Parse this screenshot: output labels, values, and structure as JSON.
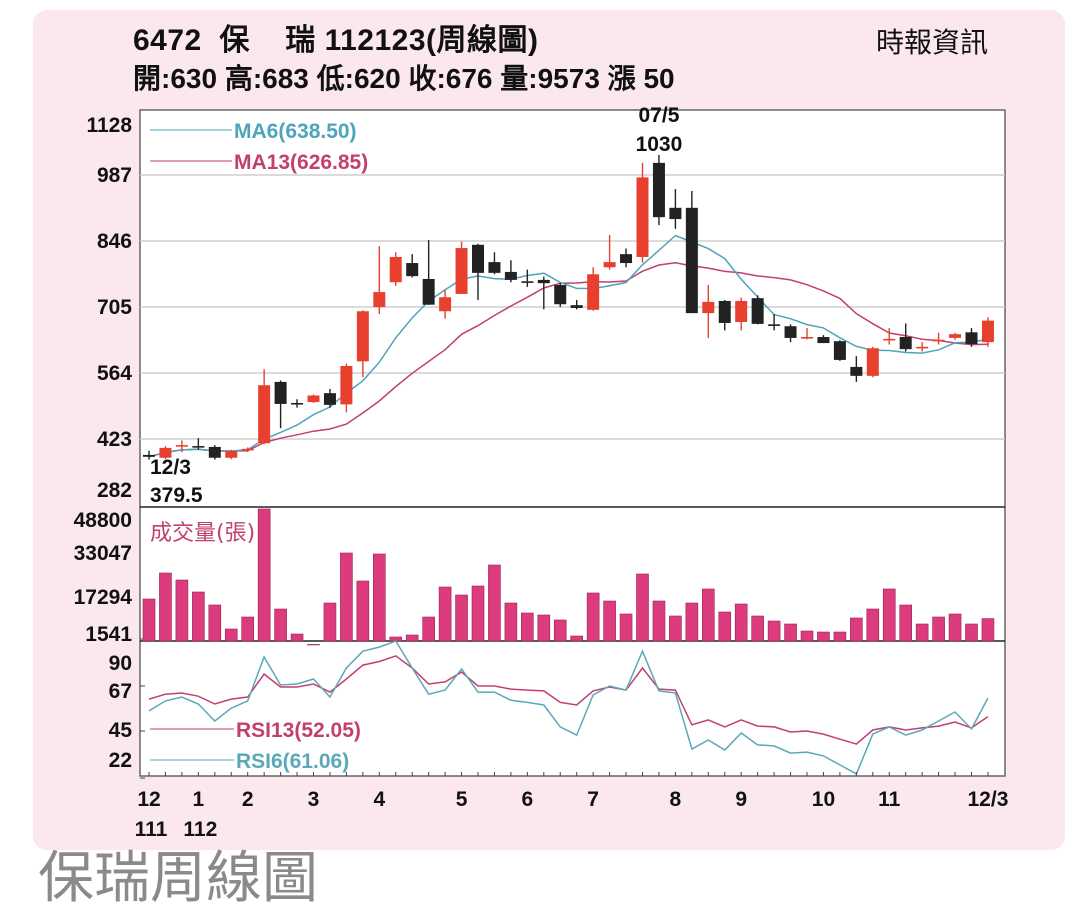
{
  "header": {
    "title": "6472  保    瑞 112123(周線圖)",
    "ohlc": "開:630 高:683 低:620 收:676 量:9573 漲 50",
    "source": "時報資訊"
  },
  "caption": "保瑞周線圖",
  "colors": {
    "up": "#e8402f",
    "down": "#222222",
    "ma6": "#4ea4ba",
    "ma13": "#c23f70",
    "volume": "#dc3c7e",
    "rsi13": "#c23f70",
    "rsi6": "#5aa8b8",
    "card": "#fbe8ef"
  },
  "chart_data": [
    {
      "type": "candlestick",
      "panel": "price",
      "y_ticks": [
        1128,
        987,
        846,
        705,
        564,
        423,
        282
      ],
      "ylim": [
        282,
        1128
      ],
      "grid": true,
      "legend": [
        {
          "name": "MA6(638.50)",
          "color": "#4ea4ba"
        },
        {
          "name": "MA13(626.85)",
          "color": "#c23f70"
        }
      ],
      "annotations": [
        {
          "week": 0,
          "date": "12/3",
          "value": "379.5"
        },
        {
          "week": 31,
          "date": "07/5",
          "value": "1030"
        }
      ],
      "x_ticks": [
        {
          "week": 0,
          "label": "12",
          "sub": "111"
        },
        {
          "week": 3,
          "label": "1",
          "sub": "112"
        },
        {
          "week": 6,
          "label": "2"
        },
        {
          "week": 10,
          "label": "3"
        },
        {
          "week": 14,
          "label": "4"
        },
        {
          "week": 19,
          "label": "5"
        },
        {
          "week": 23,
          "label": "6"
        },
        {
          "week": 27,
          "label": "7"
        },
        {
          "week": 32,
          "label": "8"
        },
        {
          "week": 36,
          "label": "9"
        },
        {
          "week": 41,
          "label": "10"
        },
        {
          "week": 45,
          "label": "11"
        },
        {
          "week": 51,
          "label": "12/3"
        }
      ],
      "ohlc": [
        [
          389,
          398,
          379,
          385
        ],
        [
          383,
          408,
          380,
          404
        ],
        [
          408,
          420,
          395,
          410
        ],
        [
          408,
          425,
          400,
          405
        ],
        [
          406,
          410,
          379,
          383
        ],
        [
          383,
          400,
          380,
          397
        ],
        [
          400,
          405,
          395,
          402
        ],
        [
          414,
          572,
          412,
          538
        ],
        [
          545,
          548,
          446,
          498
        ],
        [
          500,
          508,
          490,
          499
        ],
        [
          502,
          518,
          500,
          516
        ],
        [
          521,
          530,
          490,
          496
        ],
        [
          497,
          584,
          480,
          579
        ],
        [
          589,
          698,
          555,
          696
        ],
        [
          705,
          835,
          690,
          737
        ],
        [
          758,
          822,
          750,
          812
        ],
        [
          799,
          818,
          768,
          771
        ],
        [
          765,
          848,
          710,
          710
        ],
        [
          696,
          742,
          680,
          726
        ],
        [
          733,
          845,
          733,
          831
        ],
        [
          838,
          840,
          720,
          778
        ],
        [
          801,
          822,
          775,
          778
        ],
        [
          780,
          805,
          758,
          763
        ],
        [
          760,
          785,
          748,
          758
        ],
        [
          763,
          770,
          700,
          756
        ],
        [
          752,
          756,
          705,
          711
        ],
        [
          709,
          720,
          700,
          703
        ],
        [
          699,
          790,
          697,
          775
        ],
        [
          790,
          859,
          785,
          801
        ],
        [
          818,
          830,
          790,
          799
        ],
        [
          812,
          1013,
          800,
          982
        ],
        [
          1013,
          1030,
          880,
          897
        ],
        [
          917,
          957,
          872,
          893
        ],
        [
          917,
          953,
          692,
          692
        ],
        [
          692,
          752,
          639,
          716
        ],
        [
          718,
          720,
          655,
          671
        ],
        [
          673,
          725,
          655,
          718
        ],
        [
          724,
          730,
          668,
          669
        ],
        [
          668,
          690,
          655,
          667
        ],
        [
          664,
          668,
          630,
          639
        ],
        [
          641,
          660,
          636,
          641
        ],
        [
          641,
          645,
          628,
          628
        ],
        [
          632,
          634,
          590,
          592
        ],
        [
          577,
          600,
          545,
          558
        ],
        [
          558,
          620,
          555,
          617
        ],
        [
          637,
          660,
          625,
          637
        ],
        [
          641,
          670,
          610,
          615
        ],
        [
          620,
          630,
          610,
          620
        ],
        [
          635,
          650,
          625,
          635
        ],
        [
          639,
          650,
          635,
          647
        ],
        [
          651,
          660,
          620,
          626
        ],
        [
          630,
          683,
          620,
          676
        ]
      ]
    },
    {
      "type": "bar",
      "panel": "volume",
      "title": "成交量(張)",
      "y_ticks": [
        48800,
        33047,
        17294,
        1541
      ],
      "ylim": [
        1541,
        48800
      ],
      "values": [
        16577,
        25885,
        23380,
        19083,
        14429,
        5837,
        10133,
        48800,
        12997,
        4047,
        300,
        15145,
        33047,
        23021,
        32688,
        2973,
        3689,
        10133,
        20874,
        18009,
        21232,
        28749,
        15145,
        11565,
        10849,
        9059,
        3331,
        18725,
        15861,
        11207,
        25527,
        15861,
        10491,
        15145,
        20157,
        11923,
        14787,
        10491,
        8701,
        7627,
        5121,
        4763,
        4763,
        9775,
        12997,
        20157,
        14429,
        7627,
        10133,
        11207,
        7627,
        9573
      ]
    },
    {
      "type": "line",
      "panel": "rsi",
      "y_ticks": [
        90,
        67,
        45,
        22
      ],
      "series": [
        {
          "name": "RSI13(52.05)",
          "color": "#c23f70",
          "values": [
            60.6,
            63,
            63.6,
            62,
            58.2,
            60.6,
            61.6,
            72.8,
            66.5,
            66.5,
            68,
            64,
            70.4,
            77.2,
            79,
            81.7,
            75.8,
            68,
            69,
            73.8,
            67,
            67,
            65.5,
            65,
            64.6,
            59,
            57.7,
            64.6,
            66.5,
            65,
            75.8,
            65.5,
            65,
            48,
            50.4,
            47,
            50.4,
            47.4,
            47,
            44.5,
            45,
            43.5,
            41,
            38.6,
            45.5,
            47,
            45.5,
            46.5,
            47.4,
            49.4,
            46.5,
            52.05
          ]
        },
        {
          "name": "RSI6(61.06)",
          "color": "#5aa8b8",
          "values": [
            54.8,
            59.7,
            61.6,
            58.2,
            49.9,
            56.2,
            59.7,
            81.2,
            67.5,
            68,
            70.4,
            61.6,
            75.8,
            84,
            86,
            89,
            75.8,
            63,
            65,
            75.3,
            64,
            64,
            60,
            59,
            57.7,
            47,
            43,
            62.6,
            67,
            65,
            84,
            64.6,
            63.6,
            36.2,
            40.6,
            35.7,
            44,
            38.2,
            37.7,
            34.2,
            34.7,
            32.8,
            28.4,
            24,
            43.5,
            47,
            43,
            45.5,
            49.9,
            54.3,
            46,
            61.06
          ]
        }
      ]
    }
  ]
}
